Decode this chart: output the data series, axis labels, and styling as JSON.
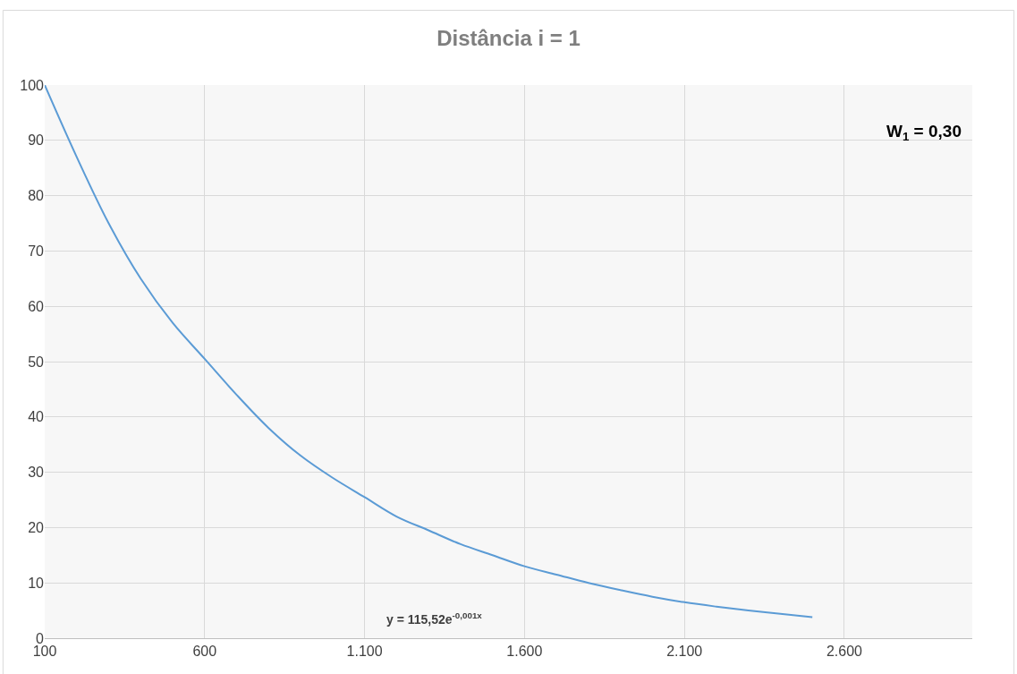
{
  "chart_data": {
    "type": "line",
    "title": "Distância i = 1",
    "x": [
      100,
      200,
      300,
      400,
      500,
      600,
      700,
      800,
      900,
      1000,
      1100,
      1200,
      1300,
      1400,
      1500,
      1600,
      1700,
      1800,
      1900,
      2000,
      2100,
      2200,
      2300,
      2400,
      2500
    ],
    "series": [
      {
        "color": "#5b9bd5",
        "values": [
          100,
          87,
          75,
          65,
          57,
          50.5,
          44,
          38,
          33,
          29,
          25.5,
          22,
          19.5,
          17,
          15,
          13,
          11.5,
          10,
          8.7,
          7.5,
          6.5,
          5.7,
          5,
          4.4,
          3.8
        ]
      }
    ],
    "xlim": [
      100,
      3000
    ],
    "xticks": [
      100,
      600,
      {
        "value": 1100,
        "label": "1.100"
      },
      {
        "value": 1600,
        "label": "1.600"
      },
      {
        "value": 2100,
        "label": "2.100"
      },
      {
        "value": 2600,
        "label": "2.600"
      }
    ],
    "ylim": [
      0,
      100
    ],
    "yticks": [
      0,
      10,
      20,
      30,
      40,
      50,
      60,
      70,
      80,
      90,
      100
    ],
    "grid": true,
    "marker": "none",
    "line_style": "solid",
    "annotations": [
      "y = 115,52e$^{-0,001x}$",
      "W$_{1}$ = 0,30"
    ]
  }
}
